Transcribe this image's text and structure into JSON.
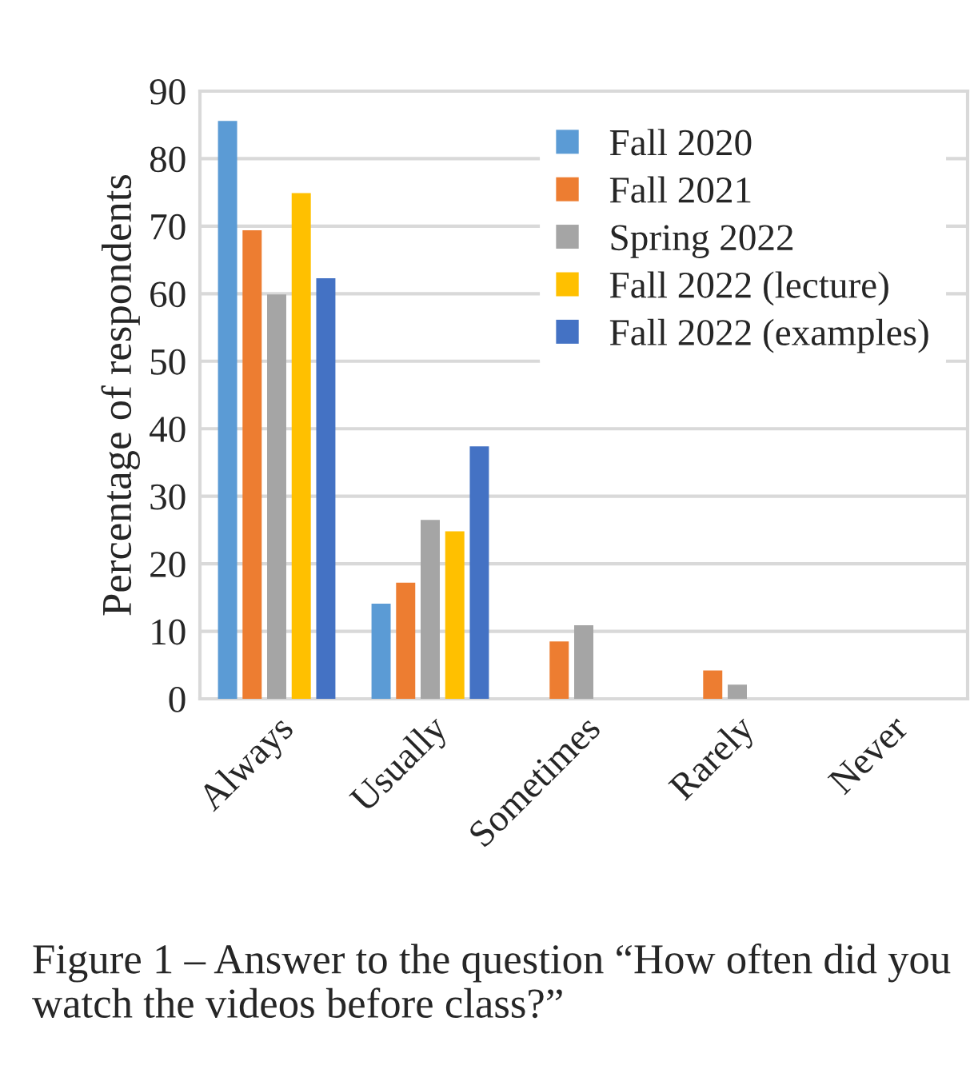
{
  "chart_data": {
    "type": "bar",
    "ylabel": "Percentage of respondents",
    "categories": [
      "Always",
      "Usually",
      "Sometimes",
      "Rarely",
      "Never"
    ],
    "series": [
      {
        "name": "Fall 2020",
        "color": "#5b9bd5",
        "values": [
          85.6,
          14.1,
          0,
          0,
          0
        ]
      },
      {
        "name": "Fall 2021",
        "color": "#ed7d31",
        "values": [
          69.4,
          17.2,
          8.5,
          4.2,
          0
        ]
      },
      {
        "name": "Spring 2022",
        "color": "#a5a5a5",
        "values": [
          59.9,
          26.5,
          10.9,
          2.1,
          0
        ]
      },
      {
        "name": "Fall 2022 (lecture)",
        "color": "#ffc000",
        "values": [
          74.9,
          24.8,
          0,
          0,
          0
        ]
      },
      {
        "name": "Fall 2022 (examples)",
        "color": "#4472c4",
        "values": [
          62.3,
          37.4,
          0,
          0,
          0
        ]
      }
    ],
    "ylim": [
      0,
      90
    ],
    "yticks": [
      0,
      10,
      20,
      30,
      40,
      50,
      60,
      70,
      80,
      90
    ],
    "grid": "y",
    "legend": "top right",
    "annotations": [
      "Figure 1 –\tAnswer to the question “How often did you watch the videos before class?”"
    ]
  }
}
